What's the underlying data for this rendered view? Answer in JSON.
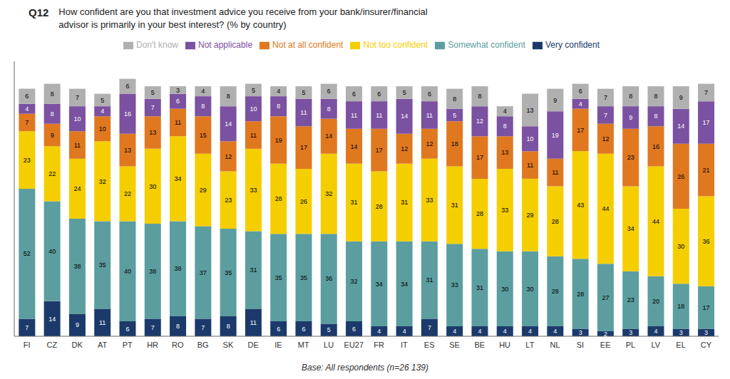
{
  "chart_data": {
    "type": "bar",
    "title": "Q12",
    "subtitle": "How confident are you that investment advice you receive from your bank/insurer/financial\nadvisor is primarily in your best interest? (% by country)",
    "annotations": [
      "Base: All respondents (n=26 139)"
    ],
    "categories": [
      "FI",
      "CZ",
      "DK",
      "AT",
      "PT",
      "HR",
      "RO",
      "BG",
      "SK",
      "DE",
      "IE",
      "MT",
      "LU",
      "EU27",
      "FR",
      "IT",
      "ES",
      "SE",
      "BE",
      "HU",
      "LT",
      "NL",
      "SI",
      "EE",
      "PL",
      "LV",
      "EL",
      "CY"
    ],
    "series": [
      {
        "name": "Very confident",
        "color": "#1b3a6b",
        "values": [
          7,
          14,
          9,
          11,
          6,
          7,
          8,
          7,
          8,
          11,
          6,
          6,
          5,
          6,
          4,
          4,
          7,
          4,
          4,
          4,
          4,
          4,
          3,
          2,
          3,
          4,
          3,
          3
        ]
      },
      {
        "name": "Somewhat confident",
        "color": "#5c9ea0",
        "values": [
          52,
          40,
          38,
          35,
          40,
          38,
          38,
          37,
          35,
          31,
          35,
          35,
          36,
          32,
          34,
          34,
          31,
          33,
          31,
          30,
          30,
          28,
          28,
          27,
          23,
          20,
          18,
          17
        ]
      },
      {
        "name": "Not too confident",
        "color": "#f5ce00",
        "values": [
          23,
          22,
          24,
          32,
          22,
          30,
          34,
          29,
          23,
          33,
          28,
          26,
          32,
          31,
          28,
          31,
          33,
          31,
          28,
          33,
          29,
          28,
          43,
          44,
          34,
          44,
          30,
          36
        ]
      },
      {
        "name": "Not at all confident",
        "color": "#e07820",
        "values": [
          7,
          9,
          11,
          10,
          13,
          13,
          11,
          15,
          12,
          11,
          19,
          17,
          14,
          14,
          17,
          12,
          12,
          18,
          17,
          13,
          11,
          11,
          17,
          12,
          23,
          16,
          26,
          21
        ]
      },
      {
        "name": "Not applicable",
        "color": "#7b51a1",
        "values": [
          4,
          8,
          10,
          4,
          16,
          7,
          6,
          8,
          14,
          10,
          8,
          11,
          8,
          11,
          11,
          14,
          11,
          5,
          12,
          8,
          10,
          19,
          4,
          7,
          9,
          8,
          14,
          17
        ]
      },
      {
        "name": "Don't know",
        "color": "#b0b0b0",
        "values": [
          6,
          8,
          7,
          5,
          6,
          5,
          3,
          4,
          8,
          5,
          4,
          5,
          6,
          6,
          6,
          5,
          6,
          8,
          8,
          4,
          13,
          9,
          6,
          7,
          8,
          8,
          9,
          7
        ]
      }
    ],
    "ylim": [
      0,
      110
    ],
    "stacked": true,
    "data_labels": true,
    "legend": "top",
    "tick_labels": "x",
    "grid": false
  }
}
